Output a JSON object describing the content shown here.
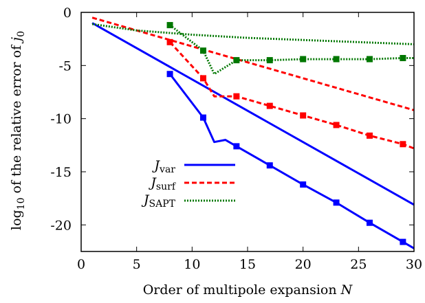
{
  "chart_data": {
    "type": "line",
    "xlabel": "Order of multipole expansion N",
    "ylabel": "log10 of the relative error of j0",
    "xlim": [
      0,
      30
    ],
    "ylim": [
      -22.5,
      0
    ],
    "xticks": [
      0,
      5,
      10,
      15,
      20,
      25,
      30
    ],
    "yticks": [
      0,
      -5,
      -10,
      -15,
      -20
    ],
    "ytick_labels": [
      "0",
      "-5",
      "-10",
      "-15",
      "-20"
    ],
    "legend_position": "lower-left",
    "series": [
      {
        "name": "Jvar",
        "color": "#0000ff",
        "style": "solid",
        "lines": [
          {
            "x": [
              1,
              2,
              30
            ],
            "y": [
              -1.0,
              -1.6,
              -18.1
            ]
          },
          {
            "x": [
              8,
              11,
              12,
              13,
              14,
              17,
              20,
              23,
              26,
              29,
              30
            ],
            "y": [
              -5.8,
              -9.9,
              -12.2,
              -12.0,
              -12.6,
              -14.4,
              -16.2,
              -17.9,
              -19.8,
              -21.6,
              -22.2
            ],
            "markers": [
              8,
              11,
              14,
              17,
              20,
              23,
              26,
              29
            ]
          }
        ]
      },
      {
        "name": "Jsurf",
        "color": "#ff0000",
        "style": "dashed",
        "lines": [
          {
            "x": [
              1,
              30
            ],
            "y": [
              -0.5,
              -9.2
            ]
          },
          {
            "x": [
              8,
              11,
              12,
              14,
              17,
              20,
              23,
              26,
              29,
              30
            ],
            "y": [
              -2.8,
              -6.2,
              -7.9,
              -7.9,
              -8.8,
              -9.7,
              -10.6,
              -11.6,
              -12.4,
              -12.8
            ],
            "markers": [
              8,
              11,
              14,
              17,
              20,
              23,
              26,
              29
            ]
          }
        ]
      },
      {
        "name": "JSAPT",
        "color": "#007700",
        "style": "dotted",
        "lines": [
          {
            "x": [
              1,
              5,
              10,
              15,
              20,
              25,
              30
            ],
            "y": [
              -1.1,
              -1.7,
              -2.1,
              -2.4,
              -2.6,
              -2.8,
              -3.0
            ]
          },
          {
            "x": [
              8,
              11,
              12,
              14,
              17,
              20,
              23,
              26,
              29,
              30
            ],
            "y": [
              -1.2,
              -3.6,
              -5.8,
              -4.5,
              -4.5,
              -4.4,
              -4.4,
              -4.4,
              -4.3,
              -4.3
            ],
            "markers": [
              8,
              11,
              14,
              17,
              20,
              23,
              26,
              29
            ]
          }
        ]
      }
    ]
  },
  "legend": {
    "entries": [
      {
        "symbol": "J",
        "subscript": "var"
      },
      {
        "symbol": "J",
        "subscript": "surf"
      },
      {
        "symbol": "J",
        "subscript": "SAPT"
      }
    ]
  },
  "axes": {
    "xlabel_text": "Order of multipole expansion ",
    "xlabel_var": "N",
    "ylabel_prefix": "log",
    "ylabel_prefix_sub": "10",
    "ylabel_text": " of the relative error of ",
    "ylabel_var": "j",
    "ylabel_var_sub": "0"
  }
}
